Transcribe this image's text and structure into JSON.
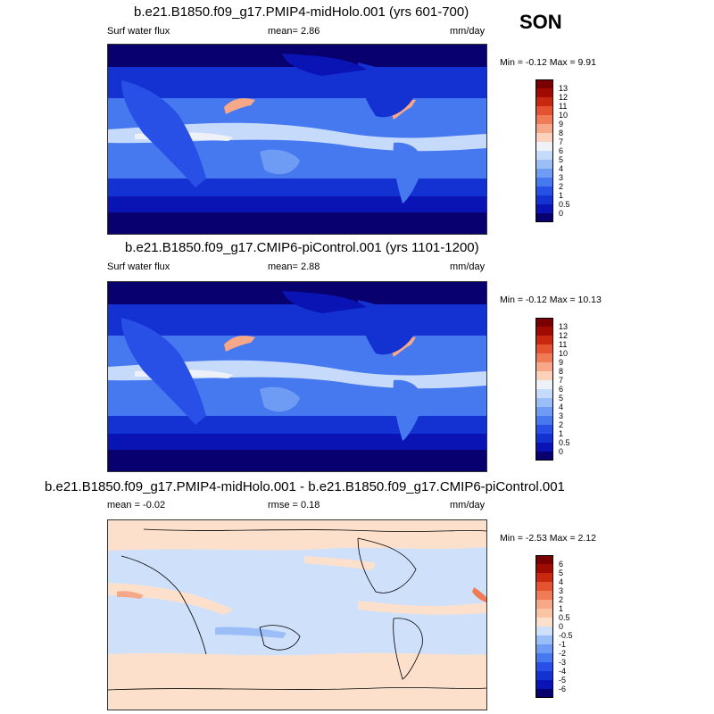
{
  "season": "SON",
  "panels": [
    {
      "title": "b.e21.B1850.f09_g17.PMIP4-midHolo.001 (yrs 601-700)",
      "left_label": "Surf water flux",
      "center_label": "mean=  2.86",
      "units": "mm/day",
      "minmax": "Min = -0.12 Max =  9.91",
      "colorbar_labels": [
        "13",
        "12",
        "11",
        "10",
        "9",
        "8",
        "7",
        "6",
        "5",
        "4",
        "3",
        "2",
        "1",
        "0.5",
        "0"
      ]
    },
    {
      "title": "b.e21.B1850.f09_g17.CMIP6-piControl.001 (yrs 1101-1200)",
      "left_label": "Surf water flux",
      "center_label": "mean=  2.88",
      "units": "mm/day",
      "minmax": "Min = -0.12 Max =  10.13",
      "colorbar_labels": [
        "13",
        "12",
        "11",
        "10",
        "9",
        "8",
        "7",
        "6",
        "5",
        "4",
        "3",
        "2",
        "1",
        "0.5",
        "0"
      ]
    },
    {
      "title": "b.e21.B1850.f09_g17.PMIP4-midHolo.001 - b.e21.B1850.f09_g17.CMIP6-piControl.001",
      "left_label": "mean =  -0.02",
      "center_label": "rmse =  0.18",
      "units": "mm/day",
      "minmax": "Min = -2.53 Max =  2.12",
      "colorbar_labels": [
        "6",
        "5",
        "4",
        "3",
        "2",
        "1",
        "0.5",
        "0",
        "-0.5",
        "-1",
        "-2",
        "-3",
        "-4",
        "-5",
        "-6"
      ]
    }
  ],
  "colorscales": {
    "flux": [
      "#08006e",
      "#0a14b4",
      "#1432d2",
      "#2850e6",
      "#4678f0",
      "#6e9cf5",
      "#9bbef8",
      "#c6dafb",
      "#eef2f8",
      "#fcd2bd",
      "#f7a888",
      "#f07c57",
      "#e4522f",
      "#c8280f",
      "#a00a00",
      "#7a0000"
    ],
    "diff": [
      "#08006e",
      "#0a14b4",
      "#1432d2",
      "#2850e6",
      "#4678f0",
      "#6e9cf5",
      "#9bbef8",
      "#cfe0fb",
      "#fde0cc",
      "#fbc4a4",
      "#f7a888",
      "#f07c57",
      "#e4522f",
      "#c8280f",
      "#a00a00",
      "#7a0000"
    ]
  }
}
